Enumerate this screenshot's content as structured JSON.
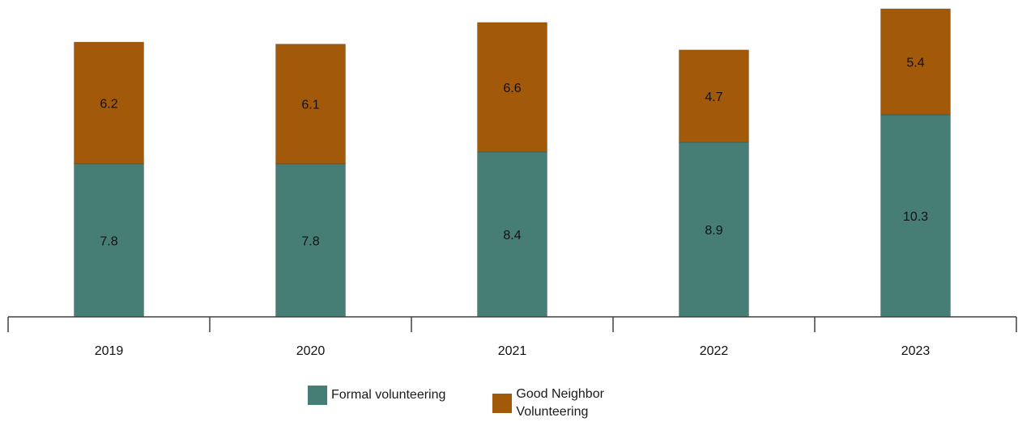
{
  "chart_data": {
    "type": "bar",
    "stacked": true,
    "categories": [
      "2019",
      "2020",
      "2021",
      "2022",
      "2023"
    ],
    "series": [
      {
        "name": "Formal volunteering",
        "values": [
          7.8,
          7.8,
          8.4,
          8.9,
          10.3
        ],
        "color": "#467e76"
      },
      {
        "name": "Good Neighbor Volunteering",
        "values": [
          6.2,
          6.1,
          6.6,
          4.7,
          5.4
        ],
        "color": "#a3590a"
      }
    ],
    "data_labels": [
      [
        "7.8",
        "7.8",
        "8.4",
        "8.9",
        "10.3"
      ],
      [
        "6.2",
        "6.1",
        "6.6",
        "4.7",
        "5.4"
      ]
    ],
    "ylim": [
      0,
      15.9
    ],
    "grid": false,
    "legend_position": "bottom"
  }
}
